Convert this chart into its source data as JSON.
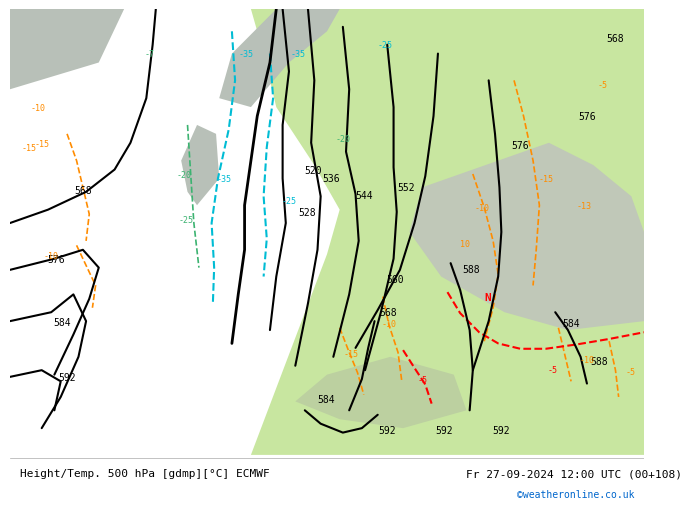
{
  "title_left": "Height/Temp. 500 hPa [gdmp][°C] ECMWF",
  "title_right": "Fr 27-09-2024 12:00 UTC (00+108)",
  "watermark": "©weatheronline.co.uk",
  "footer_bg": "#f0f0f0",
  "map_bg": "#d8d8d8",
  "green_bg": "#c8e6a0",
  "gray_land": "#b8c0b8",
  "black_contour": "#000000",
  "orange_temp": "#ff8c00",
  "cyan_temp": "#00bcd4",
  "green_temp": "#3cb371",
  "red_temp": "#ff0000",
  "blue_link": "#0066cc"
}
